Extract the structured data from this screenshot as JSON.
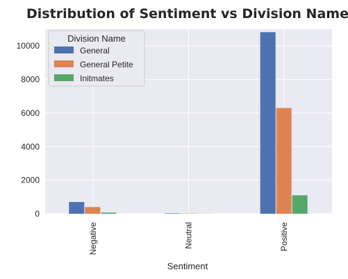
{
  "chart_data": {
    "type": "bar",
    "title": "Distribution of Sentiment vs Division Name",
    "xlabel": "Sentiment",
    "ylabel": "",
    "categories": [
      "Negative",
      "Neutral",
      "Positive"
    ],
    "series": [
      {
        "name": "General",
        "values": [
          700,
          25,
          10820
        ],
        "color": "#4c72b0"
      },
      {
        "name": "General Petite",
        "values": [
          400,
          15,
          6300
        ],
        "color": "#dd8452"
      },
      {
        "name": "Initmates",
        "values": [
          70,
          5,
          1100
        ],
        "color": "#55a868"
      }
    ],
    "ylim": [
      0,
      11000
    ],
    "yticks": [
      0,
      2000,
      4000,
      6000,
      8000,
      10000
    ],
    "legend_title": "Division Name",
    "legend_position": "top-left",
    "grid": true,
    "background": "#eaeaf2"
  }
}
